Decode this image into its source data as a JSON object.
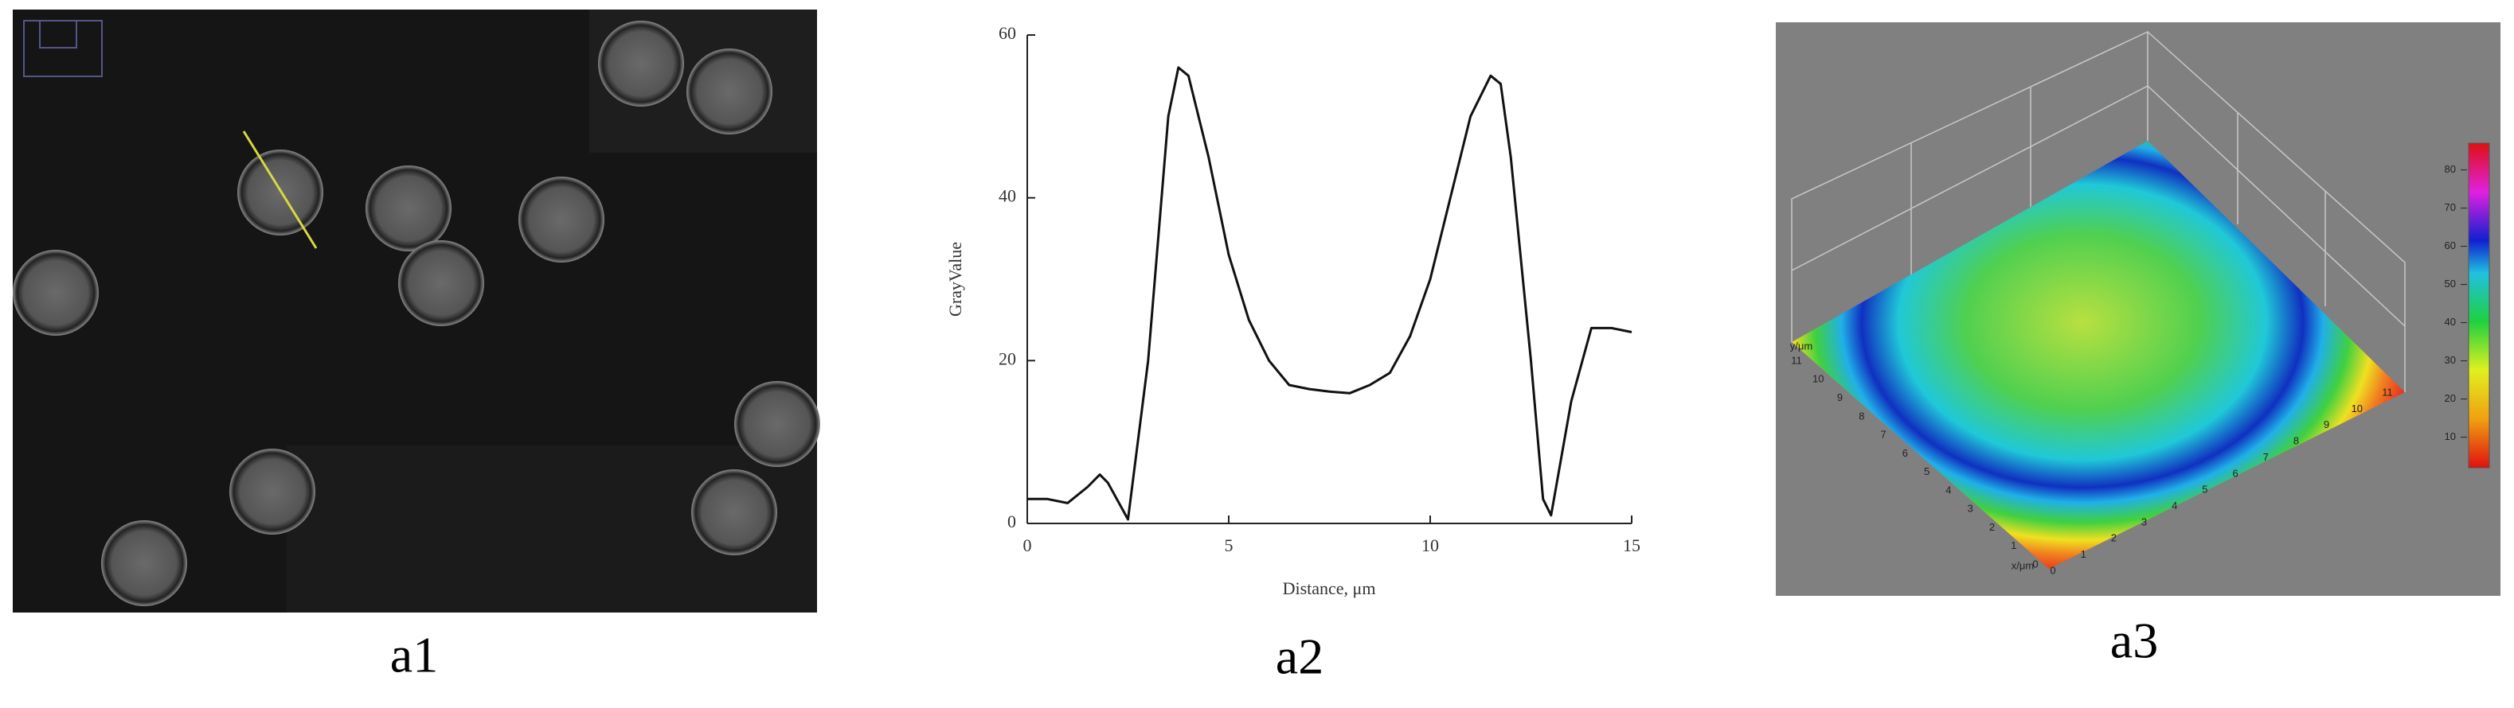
{
  "panels": [
    {
      "caption": "a1"
    },
    {
      "caption": "a2"
    },
    {
      "caption": "a3"
    }
  ],
  "chart_data": {
    "type": "line",
    "xlabel": "Distance, μm",
    "ylabel": "GrayValue",
    "x": [
      0,
      0.5,
      1,
      1.5,
      1.8,
      2,
      2.5,
      3,
      3.5,
      3.75,
      4,
      4.5,
      5,
      5.5,
      6,
      6.5,
      7,
      7.5,
      8,
      8.5,
      9,
      9.5,
      10,
      10.5,
      11,
      11.5,
      11.75,
      12,
      12.5,
      12.8,
      13,
      13.5,
      14,
      14.5,
      15
    ],
    "values": [
      3,
      3,
      2.5,
      4.5,
      6,
      5,
      0.5,
      20,
      50,
      56,
      55,
      45,
      33,
      25,
      20,
      17,
      16.5,
      16.2,
      16,
      17,
      18.5,
      23,
      30,
      40,
      50,
      55,
      54,
      45,
      20,
      3,
      1,
      15,
      24,
      24,
      23.5
    ],
    "color": "#111111",
    "xlim": [
      0,
      15
    ],
    "ylim": [
      0,
      60
    ],
    "xticks": [
      0,
      5,
      10,
      15
    ],
    "yticks": [
      0,
      20,
      40,
      60
    ]
  },
  "surface": {
    "x_label": "x/μm",
    "y_label": "y/μm",
    "x_ticks": [
      0,
      1,
      2,
      3,
      4,
      5,
      6,
      7,
      8,
      9,
      10,
      11
    ],
    "y_ticks": [
      0,
      1,
      2,
      3,
      4,
      5,
      6,
      7,
      8,
      9,
      10,
      11
    ],
    "colorbar": {
      "lim": [
        2,
        87
      ],
      "ticks": [
        10,
        20,
        30,
        40,
        50,
        60,
        70,
        80
      ]
    }
  }
}
